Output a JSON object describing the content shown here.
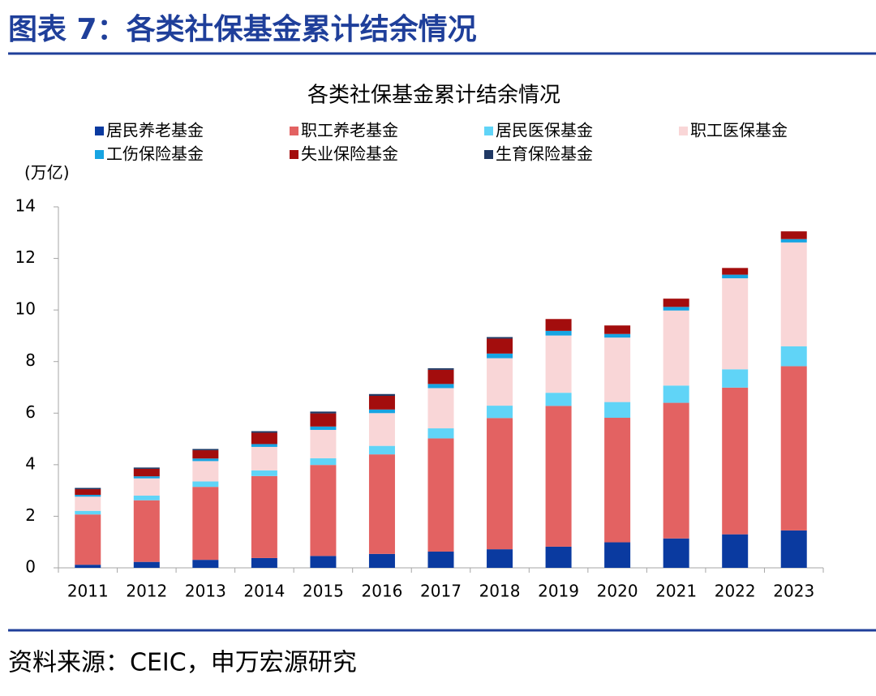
{
  "header": {
    "title": "图表 7：各类社保基金累计结余情况"
  },
  "chart_data": {
    "type": "bar",
    "stacked": true,
    "title": "各类社保基金累计结余情况",
    "y_unit": "(万亿)",
    "categories": [
      "2011",
      "2012",
      "2013",
      "2014",
      "2015",
      "2016",
      "2017",
      "2018",
      "2019",
      "2020",
      "2021",
      "2022",
      "2023"
    ],
    "series": [
      {
        "name": "居民养老基金",
        "color": "#0a3aa0",
        "values": [
          0.12,
          0.23,
          0.31,
          0.38,
          0.46,
          0.54,
          0.63,
          0.72,
          0.82,
          0.99,
          1.14,
          1.3,
          1.45
        ]
      },
      {
        "name": "职工养老基金",
        "color": "#e36262",
        "values": [
          1.95,
          2.39,
          2.83,
          3.18,
          3.53,
          3.86,
          4.39,
          5.09,
          5.46,
          4.83,
          5.26,
          5.69,
          6.37
        ]
      },
      {
        "name": "居民医保基金",
        "color": "#60d4f7",
        "values": [
          0.14,
          0.18,
          0.21,
          0.22,
          0.26,
          0.33,
          0.39,
          0.48,
          0.51,
          0.61,
          0.67,
          0.71,
          0.77
        ]
      },
      {
        "name": "职工医保基金",
        "color": "#f9d6d7",
        "values": [
          0.55,
          0.67,
          0.79,
          0.91,
          1.1,
          1.27,
          1.56,
          1.84,
          2.22,
          2.5,
          2.91,
          3.53,
          4.03
        ]
      },
      {
        "name": "工伤保险基金",
        "color": "#17a4e2",
        "values": [
          0.07,
          0.08,
          0.1,
          0.11,
          0.13,
          0.14,
          0.16,
          0.18,
          0.18,
          0.14,
          0.14,
          0.14,
          0.13
        ]
      },
      {
        "name": "失业保险基金",
        "color": "#a30d0d",
        "values": [
          0.22,
          0.29,
          0.32,
          0.44,
          0.51,
          0.53,
          0.55,
          0.58,
          0.46,
          0.33,
          0.32,
          0.26,
          0.3
        ]
      },
      {
        "name": "生育保险基金",
        "color": "#1f3864",
        "values": [
          0.05,
          0.05,
          0.05,
          0.06,
          0.07,
          0.07,
          0.06,
          0.06,
          0,
          0,
          0,
          0,
          0
        ]
      }
    ],
    "ylim": [
      0,
      14
    ],
    "yticks": [
      0,
      2,
      4,
      6,
      8,
      10,
      12,
      14
    ]
  },
  "footer": {
    "source": "资料来源：CEIC，申万宏源研究"
  }
}
